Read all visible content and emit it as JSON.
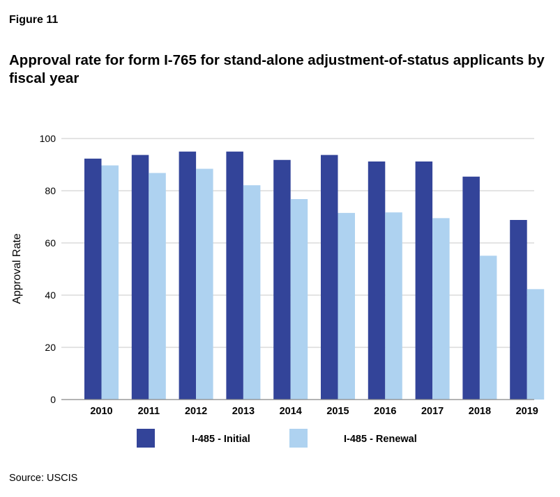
{
  "figure_label": "Figure 11",
  "source": "Source: USCIS",
  "colors": {
    "initial": "#334499",
    "renewal": "#aed2f0",
    "grid": "#c8c8c8",
    "axis": "#888888"
  },
  "chart_data": {
    "type": "bar",
    "title": "Approval rate for form I-765 for stand-alone adjustment-of-status applicants by fiscal year",
    "xlabel": "",
    "ylabel": "Approval Rate",
    "ylim": [
      0,
      100
    ],
    "yticks": [
      0,
      20,
      40,
      60,
      80,
      100
    ],
    "grid": true,
    "legend_position": "bottom",
    "categories": [
      "2010",
      "2011",
      "2012",
      "2013",
      "2014",
      "2015",
      "2016",
      "2017",
      "2018",
      "2019"
    ],
    "series": [
      {
        "name": "I-485 - Initial",
        "values": [
          92.3,
          93.7,
          95.0,
          95.0,
          91.8,
          93.7,
          91.2,
          91.2,
          85.4,
          68.8
        ]
      },
      {
        "name": "I-485 - Renewal",
        "values": [
          89.7,
          86.8,
          88.4,
          82.1,
          76.8,
          71.5,
          71.7,
          69.5,
          55.1,
          42.3
        ]
      }
    ]
  }
}
